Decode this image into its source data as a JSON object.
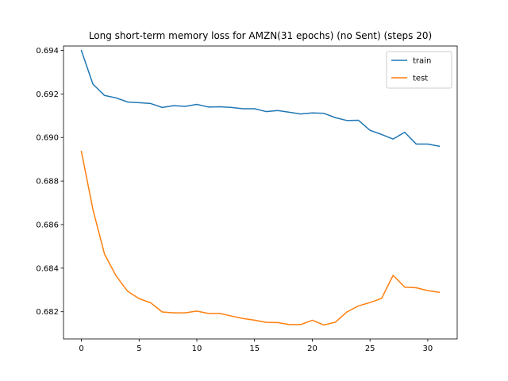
{
  "chart_data": {
    "type": "line",
    "title": "Long short-term memory loss for AMZN(31 epochs) (no Sent) (steps 20)",
    "xlabel": "",
    "ylabel": "",
    "xlim": [
      -1.55,
      32.55
    ],
    "ylim": [
      0.68075,
      0.6942
    ],
    "xticks": [
      0,
      5,
      10,
      15,
      20,
      25,
      30
    ],
    "yticks": [
      0.682,
      0.684,
      0.686,
      0.688,
      0.69,
      0.692,
      0.694
    ],
    "ytick_labels": [
      "0.682",
      "0.684",
      "0.686",
      "0.688",
      "0.690",
      "0.692",
      "0.694"
    ],
    "grid": false,
    "legend_position": "upper right",
    "x": [
      0,
      1,
      2,
      3,
      4,
      5,
      6,
      7,
      8,
      9,
      10,
      11,
      12,
      13,
      14,
      15,
      16,
      17,
      18,
      19,
      20,
      21,
      22,
      23,
      24,
      25,
      26,
      27,
      28,
      29,
      30,
      31
    ],
    "series": [
      {
        "name": "train",
        "color": "#1f77b4",
        "values": [
          0.69399,
          0.69245,
          0.69193,
          0.69182,
          0.69163,
          0.6916,
          0.69156,
          0.69138,
          0.69146,
          0.69143,
          0.69152,
          0.6914,
          0.69141,
          0.69138,
          0.69132,
          0.69132,
          0.69119,
          0.69124,
          0.69116,
          0.69108,
          0.69113,
          0.69111,
          0.69091,
          0.69078,
          0.69079,
          0.69033,
          0.69014,
          0.68993,
          0.69024,
          0.6897,
          0.6897,
          0.6896
        ]
      },
      {
        "name": "test",
        "color": "#ff7f0e",
        "values": [
          0.68936,
          0.68669,
          0.68465,
          0.68365,
          0.68294,
          0.6826,
          0.68241,
          0.68199,
          0.68195,
          0.68195,
          0.68203,
          0.68192,
          0.68192,
          0.6818,
          0.68169,
          0.68161,
          0.68151,
          0.6815,
          0.68141,
          0.68141,
          0.68161,
          0.68139,
          0.68152,
          0.68199,
          0.68227,
          0.68242,
          0.68261,
          0.68367,
          0.68313,
          0.6831,
          0.68297,
          0.68289
        ]
      }
    ]
  }
}
